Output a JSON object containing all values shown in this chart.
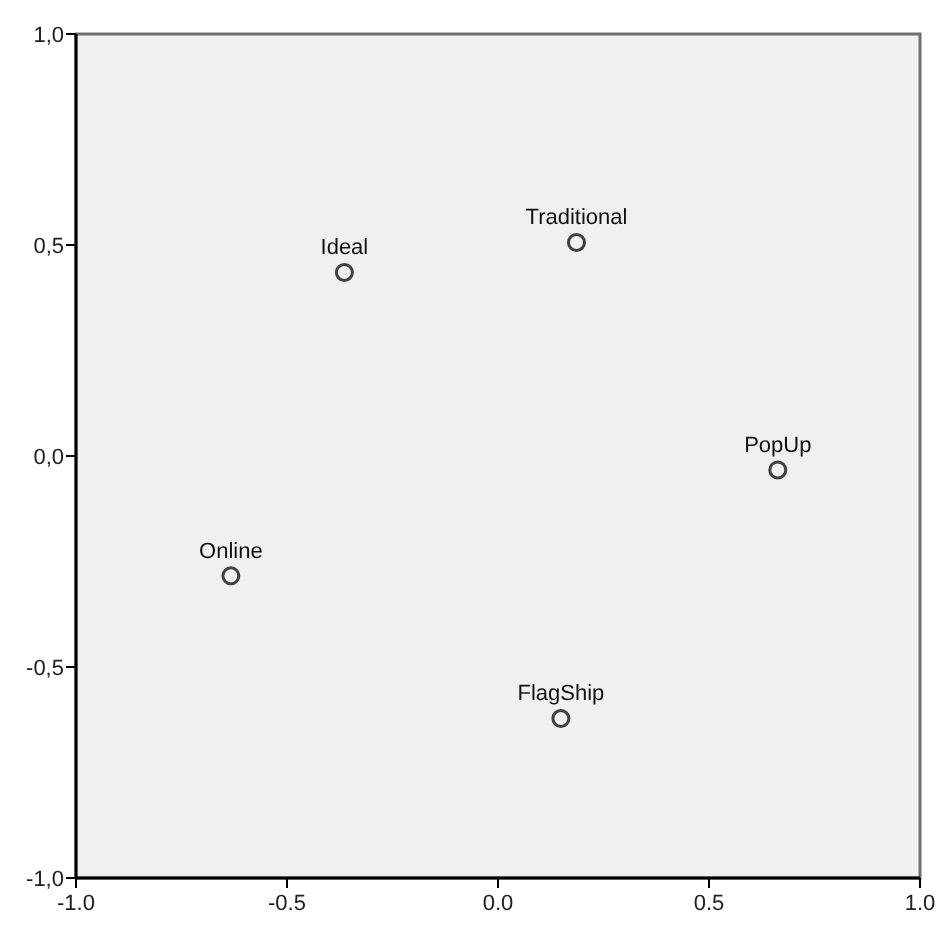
{
  "chart_data": {
    "type": "scatter",
    "x": [
      -0.364,
      0.186,
      0.663,
      -0.633,
      0.149
    ],
    "series": [
      {
        "color": "#404040",
        "values": [
          0.435,
          0.506,
          -0.033,
          -0.284,
          -0.622
        ]
      }
    ],
    "xlim": [
      -1,
      1
    ],
    "ylim": [
      -1,
      1
    ],
    "xticks": [
      {
        "value": -1,
        "label": "-1.0"
      },
      {
        "value": -0.5,
        "label": "-0.5"
      },
      {
        "value": 0,
        "label": "0.0"
      },
      {
        "value": 0.5,
        "label": "0.5"
      },
      {
        "value": 1,
        "label": "1.0"
      }
    ],
    "yticks": [
      {
        "value": -1,
        "label": "-1,0"
      },
      {
        "value": -0.5,
        "label": "-0,5"
      },
      {
        "value": 0,
        "label": "0,0"
      },
      {
        "value": 0.5,
        "label": "0,5"
      },
      {
        "value": 1,
        "label": "1,0"
      }
    ],
    "marker": "circle",
    "annotations": [
      {
        "text": "Ideal",
        "x": -0.364,
        "y": 0.435
      },
      {
        "text": "Traditional",
        "x": 0.186,
        "y": 0.506
      },
      {
        "text": "PopUp",
        "x": 0.663,
        "y": -0.033
      },
      {
        "text": "Online",
        "x": -0.633,
        "y": -0.284
      },
      {
        "text": "FlagShip",
        "x": 0.149,
        "y": -0.622
      }
    ]
  }
}
